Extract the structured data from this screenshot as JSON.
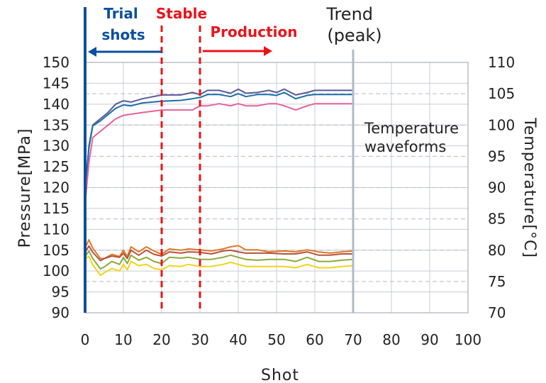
{
  "chart_data": {
    "type": "line",
    "xlabel": "Shot",
    "ylabel_left": "Pressure[MPa]",
    "ylabel_right": "Temperature[°C]",
    "xlim": [
      0,
      100
    ],
    "ylim_left": [
      90,
      150
    ],
    "ylim_right": [
      70,
      110
    ],
    "x_ticks": [
      0,
      10,
      20,
      30,
      40,
      50,
      60,
      70,
      80,
      90,
      100
    ],
    "y_left_ticks": [
      90,
      95,
      100,
      105,
      110,
      115,
      120,
      125,
      130,
      135,
      140,
      145,
      150
    ],
    "y_right_ticks": [
      70,
      75,
      80,
      85,
      90,
      95,
      100,
      105,
      110
    ],
    "grid": true,
    "annotations": {
      "trial_shots": "Trial\nshots",
      "stable": "Stable",
      "production": "Production",
      "trend_peak": "Trend\n(peak)",
      "temperature_waveforms": "Temperature\nwaveforms"
    },
    "markers": [
      {
        "label": "trial_shots",
        "x": 0,
        "color": "#0b4fa0"
      },
      {
        "label": "stable",
        "x": 20,
        "color": "#e8141a"
      },
      {
        "label": "production",
        "x": 30,
        "color": "#e8141a"
      },
      {
        "label": "trend_peak",
        "x": 70,
        "color": "#b0b8c8"
      }
    ],
    "series": [
      {
        "axis": "left",
        "color": "#5a5a9a",
        "x": [
          0,
          1,
          2,
          4,
          6,
          8,
          10,
          12,
          15,
          20,
          25,
          28,
          30,
          32,
          35,
          38,
          40,
          42,
          45,
          48,
          50,
          52,
          55,
          58,
          60,
          65,
          70
        ],
        "values": [
          119,
          130,
          135,
          136.5,
          138,
          140,
          140.8,
          140.5,
          141.3,
          142.2,
          142.2,
          142.8,
          142.3,
          143.3,
          143.3,
          142.6,
          143.6,
          142.6,
          142.8,
          143.3,
          142.8,
          143.6,
          142.2,
          142.8,
          143.3,
          143.3,
          143.3
        ]
      },
      {
        "axis": "left",
        "color": "#1a6fa8",
        "x": [
          0,
          1,
          2,
          4,
          6,
          8,
          10,
          12,
          15,
          20,
          25,
          28,
          30,
          32,
          35,
          38,
          40,
          42,
          45,
          48,
          50,
          52,
          55,
          58,
          60,
          65,
          70
        ],
        "values": [
          119,
          129.5,
          134.8,
          136,
          137.5,
          139,
          139.8,
          139.6,
          140.3,
          140.7,
          140.9,
          141.3,
          141.6,
          142.3,
          142.3,
          141.8,
          142.5,
          141.8,
          142.3,
          142.3,
          142.1,
          142.8,
          141.3,
          142.1,
          142.3,
          142.3,
          142.3
        ]
      },
      {
        "axis": "left",
        "color": "#e8619a",
        "x": [
          0,
          1,
          2,
          4,
          6,
          8,
          10,
          12,
          15,
          20,
          25,
          28,
          30,
          32,
          35,
          38,
          40,
          42,
          45,
          48,
          50,
          52,
          55,
          58,
          60,
          65,
          70
        ],
        "values": [
          116,
          126,
          132,
          133.5,
          135,
          136.5,
          137.3,
          137.6,
          138.0,
          138.6,
          138.6,
          138.6,
          139.6,
          139.6,
          140.1,
          139.6,
          140.1,
          139.6,
          139.6,
          140.1,
          140.1,
          139.6,
          138.6,
          139.6,
          140.1,
          140.1,
          140.1
        ]
      },
      {
        "axis": "left",
        "color": "#e0782a",
        "x": [
          0,
          1,
          2,
          4,
          5,
          7,
          9,
          10,
          11,
          12,
          14,
          16,
          18,
          20,
          22,
          25,
          27,
          30,
          33,
          36,
          38,
          40,
          42,
          45,
          48,
          52,
          55,
          58,
          61,
          64,
          67,
          70
        ],
        "values": [
          105.5,
          107.5,
          105.5,
          103,
          103,
          104,
          103.5,
          105,
          103.5,
          105.8,
          104.6,
          105.8,
          104.8,
          104,
          105.3,
          105,
          105.3,
          105.1,
          104.8,
          105.3,
          105.8,
          106.1,
          105.1,
          105.1,
          104.6,
          104.8,
          104.6,
          105.1,
          104.6,
          104.3,
          104.6,
          104.8
        ]
      },
      {
        "axis": "left",
        "color": "#b5533a",
        "x": [
          0,
          1,
          2,
          4,
          5,
          7,
          9,
          10,
          11,
          12,
          14,
          16,
          18,
          20,
          22,
          25,
          27,
          30,
          33,
          36,
          38,
          40,
          42,
          45,
          48,
          52,
          55,
          58,
          61,
          64,
          67,
          70
        ],
        "values": [
          104.5,
          106,
          104.5,
          102.5,
          103,
          103.6,
          103.3,
          104.3,
          103,
          105,
          103.8,
          105,
          104,
          103.6,
          104.6,
          104.3,
          104.6,
          104.5,
          104.1,
          104.8,
          105,
          104.6,
          104.3,
          104.3,
          104.3,
          104.1,
          104.1,
          104.6,
          103.8,
          103.8,
          104.1,
          104.1
        ]
      },
      {
        "axis": "left",
        "color": "#8aaa3a",
        "x": [
          0,
          1,
          2,
          4,
          5,
          7,
          9,
          10,
          11,
          12,
          14,
          16,
          18,
          20,
          22,
          25,
          27,
          30,
          33,
          36,
          38,
          40,
          42,
          45,
          48,
          52,
          55,
          58,
          61,
          64,
          67,
          70
        ],
        "values": [
          103.5,
          104.8,
          103,
          100.5,
          101,
          102.3,
          101.6,
          103.3,
          101.8,
          103.8,
          102.6,
          103.3,
          102.3,
          101.8,
          103.3,
          103.1,
          103.3,
          102.8,
          102.8,
          103.3,
          103.8,
          103.3,
          102.8,
          102.6,
          102.8,
          102.8,
          102.3,
          103.3,
          102.3,
          102.3,
          102.6,
          102.8
        ]
      },
      {
        "axis": "left",
        "color": "#f2d21a",
        "x": [
          0,
          1,
          2,
          4,
          5,
          7,
          9,
          10,
          11,
          12,
          14,
          16,
          18,
          20,
          22,
          25,
          27,
          30,
          33,
          36,
          38,
          40,
          42,
          45,
          48,
          52,
          55,
          58,
          61,
          64,
          67,
          70
        ],
        "values": [
          103,
          103.5,
          101.5,
          99,
          99.6,
          100.6,
          100,
          101.6,
          100.3,
          102.3,
          101.3,
          101.6,
          100.6,
          100.3,
          101.3,
          101.1,
          101.6,
          101.1,
          101.1,
          101.6,
          102.1,
          101.6,
          101.1,
          101.1,
          101.1,
          101.1,
          100.8,
          101.6,
          100.8,
          100.8,
          101.1,
          101.3
        ]
      }
    ]
  }
}
